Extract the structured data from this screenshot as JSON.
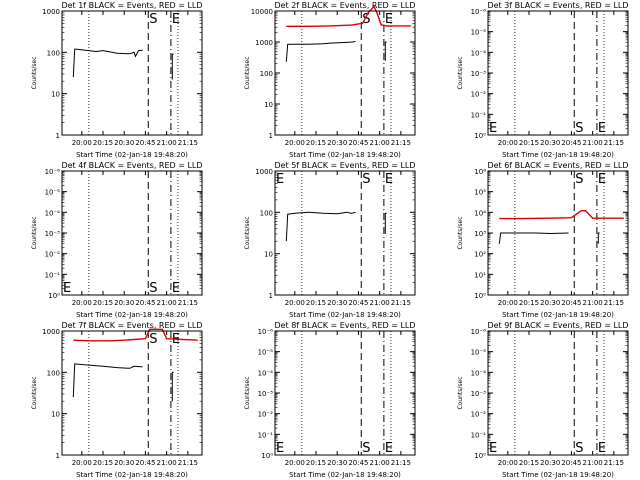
{
  "colors": {
    "events": "#000000",
    "lld": "#dd0000",
    "background": "#ffffff"
  },
  "chart_data": [
    {
      "type": "line",
      "title": "Det 1f BLACK = Events, RED = LLD",
      "xlabel": "Start Time (02-Jan-18 19:48:20)",
      "ylabel": "Counts/sec",
      "x_tick_labels": [
        "20:00",
        "20:15",
        "20:30",
        "20:45",
        "21:00",
        "21:15"
      ],
      "y_tick_labels": [
        "1",
        "10",
        "100",
        "1000"
      ],
      "log_y": true,
      "ylim": [
        1,
        1000
      ],
      "markers": [
        {
          "label": "S",
          "time": "20:47"
        },
        {
          "label": "E",
          "time": "21:03"
        }
      ],
      "series": [
        {
          "points": [
            [
              "19:54",
              25
            ],
            [
              "19:55",
              120
            ],
            [
              "19:56",
              120
            ],
            [
              "20:10",
              105
            ],
            [
              "20:15",
              110
            ],
            [
              "20:25",
              95
            ],
            [
              "20:34",
              92
            ],
            [
              "20:37",
              100
            ],
            [
              "20:38",
              80
            ],
            [
              "20:40",
              110
            ],
            [
              "20:43",
              112
            ]
          ]
        },
        {
          "points": [
            [
              "21:04",
              22
            ],
            [
              "21:04",
              90
            ],
            [
              "21:05",
              92
            ]
          ]
        }
      ]
    },
    {
      "type": "line",
      "title": "Det 2f BLACK = Events, RED = LLD",
      "xlabel": "Start Time (02-Jan-18 19:48:20)",
      "ylabel": "Counts/sec",
      "x_tick_labels": [
        "20:00",
        "20:15",
        "20:30",
        "20:45",
        "21:00",
        "21:15"
      ],
      "y_tick_labels": [
        "1",
        "10",
        "100",
        "1000",
        "10000"
      ],
      "log_y": true,
      "ylim": [
        1,
        10000
      ],
      "markers": [
        {
          "label": "S",
          "time": "20:47"
        },
        {
          "label": "E",
          "time": "21:03"
        }
      ],
      "series": [
        {
          "color_key": "events",
          "points": [
            [
              "19:54",
              230
            ],
            [
              "19:55",
              850
            ],
            [
              "20:10",
              850
            ],
            [
              "20:20",
              880
            ],
            [
              "20:25",
              920
            ],
            [
              "20:35",
              960
            ],
            [
              "20:41",
              1000
            ],
            [
              "20:43",
              1050
            ]
          ]
        },
        {
          "color_key": "events",
          "points": [
            [
              "21:04",
              250
            ],
            [
              "21:04",
              1000
            ],
            [
              "21:05",
              1000
            ]
          ]
        },
        {
          "color_key": "lld",
          "points": [
            [
              "19:54",
              3200
            ],
            [
              "20:10",
              3200
            ],
            [
              "20:25",
              3300
            ],
            [
              "20:40",
              3500
            ],
            [
              "20:48",
              4000
            ],
            [
              "20:52",
              9000
            ],
            [
              "20:56",
              14000
            ],
            [
              "20:58",
              9000
            ],
            [
              "21:01",
              3600
            ],
            [
              "21:05",
              3300
            ],
            [
              "21:22",
              3300
            ]
          ]
        }
      ]
    },
    {
      "type": "line",
      "title": "Det 3f BLACK = Events, RED = LLD",
      "xlabel": "Start Time (02-Jan-18 19:48:20)",
      "ylabel": "Counts/sec",
      "x_tick_labels": [
        "20:00",
        "20:15",
        "20:30",
        "20:45",
        "21:00",
        "21:15"
      ],
      "y_tick_labels": [
        "10⁰",
        "10⁻¹",
        "10⁻²",
        "10⁻³",
        "10⁻⁴",
        "10⁻⁵",
        "10⁻⁶"
      ],
      "log_y": true,
      "ylim": [
        1,
        1e-06
      ],
      "markers": [
        {
          "label": "E",
          "time": "19:46"
        },
        {
          "label": "S",
          "time": "20:47"
        },
        {
          "label": "E",
          "time": "21:03"
        }
      ],
      "series": []
    },
    {
      "type": "line",
      "title": "Det 4f BLACK = Events, RED = LLD",
      "xlabel": "Start Time (02-Jan-18 19:48:20)",
      "ylabel": "Counts/sec",
      "x_tick_labels": [
        "20:00",
        "20:15",
        "20:30",
        "20:45",
        "21:00",
        "21:15"
      ],
      "y_tick_labels": [
        "10⁰",
        "10⁻¹",
        "10⁻²",
        "10⁻³",
        "10⁻⁴",
        "10⁻⁵",
        "10⁻⁶"
      ],
      "log_y": true,
      "ylim": [
        1,
        1e-06
      ],
      "markers": [
        {
          "label": "E",
          "time": "19:46"
        },
        {
          "label": "S",
          "time": "20:47"
        },
        {
          "label": "E",
          "time": "21:03"
        }
      ],
      "series": []
    },
    {
      "type": "line",
      "title": "Det 5f BLACK = Events, RED = LLD",
      "xlabel": "Start Time (02-Jan-18 19:48:20)",
      "ylabel": "Counts/sec",
      "x_tick_labels": [
        "20:00",
        "20:15",
        "20:30",
        "20:45",
        "21:00",
        "21:15"
      ],
      "y_tick_labels": [
        "1",
        "10",
        "100",
        "1000"
      ],
      "log_y": true,
      "ylim": [
        1,
        1000
      ],
      "markers": [
        {
          "label": "E",
          "time": "19:46"
        },
        {
          "label": "S",
          "time": "20:47"
        },
        {
          "label": "E",
          "time": "21:03"
        }
      ],
      "series": [
        {
          "color_key": "events",
          "points": [
            [
              "19:54",
              20
            ],
            [
              "19:55",
              90
            ],
            [
              "20:00",
              95
            ],
            [
              "20:10",
              100
            ],
            [
              "20:20",
              95
            ],
            [
              "20:30",
              92
            ],
            [
              "20:37",
              100
            ],
            [
              "20:40",
              95
            ],
            [
              "20:43",
              100
            ]
          ]
        },
        {
          "color_key": "events",
          "points": [
            [
              "21:04",
              30
            ],
            [
              "21:04",
              95
            ],
            [
              "21:05",
              95
            ]
          ]
        }
      ]
    },
    {
      "type": "line",
      "title": "Det 6f BLACK = Events, RED = LLD",
      "xlabel": "Start Time (02-Jan-18 19:48:20)",
      "ylabel": "Counts/sec",
      "x_tick_labels": [
        "20:00",
        "20:15",
        "20:30",
        "20:45",
        "21:00",
        "21:15"
      ],
      "y_tick_labels": [
        "10⁰",
        "10¹",
        "10²",
        "10³",
        "10⁴",
        "10⁵",
        "10⁶"
      ],
      "log_y": true,
      "ylim": [
        1,
        1000000.0
      ],
      "markers": [
        {
          "label": "S",
          "time": "20:47"
        },
        {
          "label": "E",
          "time": "21:03"
        }
      ],
      "series": [
        {
          "color_key": "events",
          "points": [
            [
              "19:54",
              300
            ],
            [
              "19:55",
              1000
            ],
            [
              "20:20",
              1000
            ],
            [
              "20:30",
              950
            ],
            [
              "20:43",
              1000
            ]
          ]
        },
        {
          "color_key": "events",
          "points": [
            [
              "21:04",
              300
            ],
            [
              "21:04",
              1000
            ],
            [
              "21:05",
              1000
            ]
          ]
        },
        {
          "color_key": "lld",
          "points": [
            [
              "19:54",
              5000
            ],
            [
              "20:10",
              5000
            ],
            [
              "20:30",
              5200
            ],
            [
              "20:45",
              5500
            ],
            [
              "20:52",
              12000
            ],
            [
              "20:55",
              12000
            ],
            [
              "21:00",
              5200
            ],
            [
              "21:22",
              5200
            ]
          ]
        }
      ]
    },
    {
      "type": "line",
      "title": "Det 7f BLACK = Events, RED = LLD",
      "xlabel": "Start Time (02-Jan-18 19:48:20)",
      "ylabel": "Counts/sec",
      "x_tick_labels": [
        "20:00",
        "20:15",
        "20:30",
        "20:45",
        "21:00",
        "21:15"
      ],
      "y_tick_labels": [
        "1",
        "10",
        "100",
        "1000"
      ],
      "log_y": true,
      "ylim": [
        1,
        1000
      ],
      "markers": [
        {
          "label": "S",
          "time": "20:47"
        },
        {
          "label": "E",
          "time": "21:03"
        }
      ],
      "series": [
        {
          "color_key": "events",
          "points": [
            [
              "19:54",
              25
            ],
            [
              "19:55",
              160
            ],
            [
              "20:05",
              150
            ],
            [
              "20:15",
              140
            ],
            [
              "20:25",
              130
            ],
            [
              "20:34",
              125
            ],
            [
              "20:37",
              140
            ],
            [
              "20:43",
              135
            ]
          ]
        },
        {
          "color_key": "events",
          "points": [
            [
              "21:04",
              20
            ],
            [
              "21:04",
              100
            ],
            [
              "21:05",
              100
            ]
          ]
        },
        {
          "color_key": "lld",
          "points": [
            [
              "19:54",
              600
            ],
            [
              "20:05",
              580
            ],
            [
              "20:20",
              580
            ],
            [
              "20:30",
              600
            ],
            [
              "20:45",
              650
            ],
            [
              "20:48",
              1100
            ],
            [
              "20:57",
              1100
            ],
            [
              "21:00",
              650
            ],
            [
              "21:22",
              600
            ]
          ]
        }
      ]
    },
    {
      "type": "line",
      "title": "Det 8f BLACK = Events, RED = LLD",
      "xlabel": "Start Time (02-Jan-18 19:48:20)",
      "ylabel": "Counts/sec",
      "x_tick_labels": [
        "20:00",
        "20:15",
        "20:30",
        "20:45",
        "21:00",
        "21:15"
      ],
      "y_tick_labels": [
        "10⁰",
        "10⁻¹",
        "10⁻²",
        "10⁻³",
        "10⁻⁴",
        "10⁻⁵",
        "10⁻⁶"
      ],
      "log_y": true,
      "ylim": [
        1,
        1e-06
      ],
      "markers": [
        {
          "label": "E",
          "time": "19:46"
        },
        {
          "label": "S",
          "time": "20:47"
        },
        {
          "label": "E",
          "time": "21:03"
        }
      ],
      "series": []
    },
    {
      "type": "line",
      "title": "Det 9f BLACK = Events, RED = LLD",
      "xlabel": "Start Time (02-Jan-18 19:48:20)",
      "ylabel": "Counts/sec",
      "x_tick_labels": [
        "20:00",
        "20:15",
        "20:30",
        "20:45",
        "21:00",
        "21:15"
      ],
      "y_tick_labels": [
        "10⁰",
        "10⁻¹",
        "10⁻²",
        "10⁻³",
        "10⁻⁴",
        "10⁻⁵",
        "10⁻⁶"
      ],
      "log_y": true,
      "ylim": [
        1,
        1e-06
      ],
      "markers": [
        {
          "label": "E",
          "time": "19:46"
        },
        {
          "label": "S",
          "time": "20:47"
        },
        {
          "label": "E",
          "time": "21:03"
        }
      ],
      "series": []
    }
  ]
}
